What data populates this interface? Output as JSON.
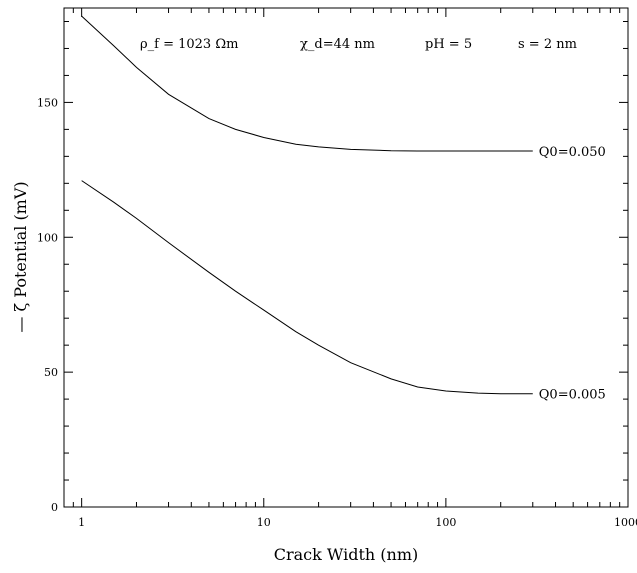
{
  "chart_data": {
    "type": "line",
    "title": "",
    "xlabel": "Crack Width (nm)",
    "ylabel": "— ζ Potential (mV)",
    "xscale": "log",
    "xlim": [
      0.8,
      1000
    ],
    "ylim": [
      0,
      185
    ],
    "grid": false,
    "x_ticks": [
      1,
      10,
      100,
      1000
    ],
    "x_tick_labels": [
      "1",
      "10",
      "100",
      "1000"
    ],
    "y_ticks": [
      0,
      50,
      100,
      150
    ],
    "y_tick_labels": [
      "0",
      "50",
      "100",
      "150"
    ],
    "annotations": [
      {
        "text": "ρ_f = 1023 Ωm"
      },
      {
        "text": "χ_d=44 nm"
      },
      {
        "text": "pH = 5"
      },
      {
        "text": "s = 2 nm"
      }
    ],
    "series": [
      {
        "name": "Q0=0.050",
        "x": [
          1,
          1.5,
          2,
          3,
          5,
          7,
          10,
          15,
          20,
          30,
          50,
          70,
          100,
          150,
          200,
          300
        ],
        "y": [
          182,
          171,
          163,
          153,
          144,
          140,
          137,
          134.5,
          133.5,
          132.6,
          132.1,
          132,
          132,
          132,
          132,
          132
        ]
      },
      {
        "name": "Q0=0.005",
        "x": [
          1,
          1.5,
          2,
          3,
          5,
          7,
          10,
          15,
          20,
          30,
          50,
          70,
          100,
          150,
          200,
          300
        ],
        "y": [
          121,
          113,
          107,
          98,
          87,
          80,
          73,
          65,
          60,
          53.5,
          47.5,
          44.5,
          43,
          42.2,
          42,
          42
        ]
      }
    ]
  }
}
